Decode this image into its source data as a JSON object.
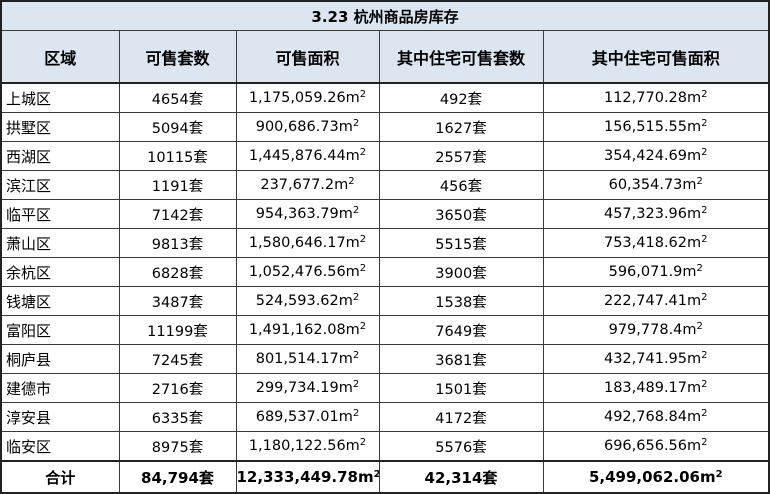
{
  "title": "3.23 杭州商品房库存",
  "headers": [
    "区域",
    "可售套数",
    "可售面积",
    "其中住宅可售套数",
    "其中住宅可售面积"
  ],
  "area_unit": "m",
  "area_sup": "2",
  "rows": [
    {
      "district": "上城区",
      "units": "4654套",
      "area": "1,175,059.26",
      "res_units": "492套",
      "res_area": "112,770.28"
    },
    {
      "district": "拱墅区",
      "units": "5094套",
      "area": "900,686.73",
      "res_units": "1627套",
      "res_area": "156,515.55"
    },
    {
      "district": "西湖区",
      "units": "10115套",
      "area": "1,445,876.44",
      "res_units": "2557套",
      "res_area": "354,424.69"
    },
    {
      "district": "滨江区",
      "units": "1191套",
      "area": "237,677.2",
      "res_units": "456套",
      "res_area": "60,354.73"
    },
    {
      "district": "临平区",
      "units": "7142套",
      "area": "954,363.79",
      "res_units": "3650套",
      "res_area": "457,323.96"
    },
    {
      "district": "萧山区",
      "units": "9813套",
      "area": "1,580,646.17",
      "res_units": "5515套",
      "res_area": "753,418.62"
    },
    {
      "district": "余杭区",
      "units": "6828套",
      "area": "1,052,476.56",
      "res_units": "3900套",
      "res_area": "596,071.9"
    },
    {
      "district": "钱塘区",
      "units": "3487套",
      "area": "524,593.62",
      "res_units": "1538套",
      "res_area": "222,747.41"
    },
    {
      "district": "富阳区",
      "units": "11199套",
      "area": "1,491,162.08",
      "res_units": "7649套",
      "res_area": "979,778.4"
    },
    {
      "district": "桐庐县",
      "units": "7245套",
      "area": "801,514.17",
      "res_units": "3681套",
      "res_area": "432,741.95"
    },
    {
      "district": "建德市",
      "units": "2716套",
      "area": "299,734.19",
      "res_units": "1501套",
      "res_area": "183,489.17"
    },
    {
      "district": "淳安县",
      "units": "6335套",
      "area": "689,537.01",
      "res_units": "4172套",
      "res_area": "492,768.84"
    },
    {
      "district": "临安区",
      "units": "8975套",
      "area": "1,180,122.56",
      "res_units": "5576套",
      "res_area": "696,656.56"
    }
  ],
  "total": {
    "label": "合计",
    "units": "84,794套",
    "area": "12,333,449.78",
    "res_units": "42,314套",
    "res_area": "5,499,062.06"
  }
}
